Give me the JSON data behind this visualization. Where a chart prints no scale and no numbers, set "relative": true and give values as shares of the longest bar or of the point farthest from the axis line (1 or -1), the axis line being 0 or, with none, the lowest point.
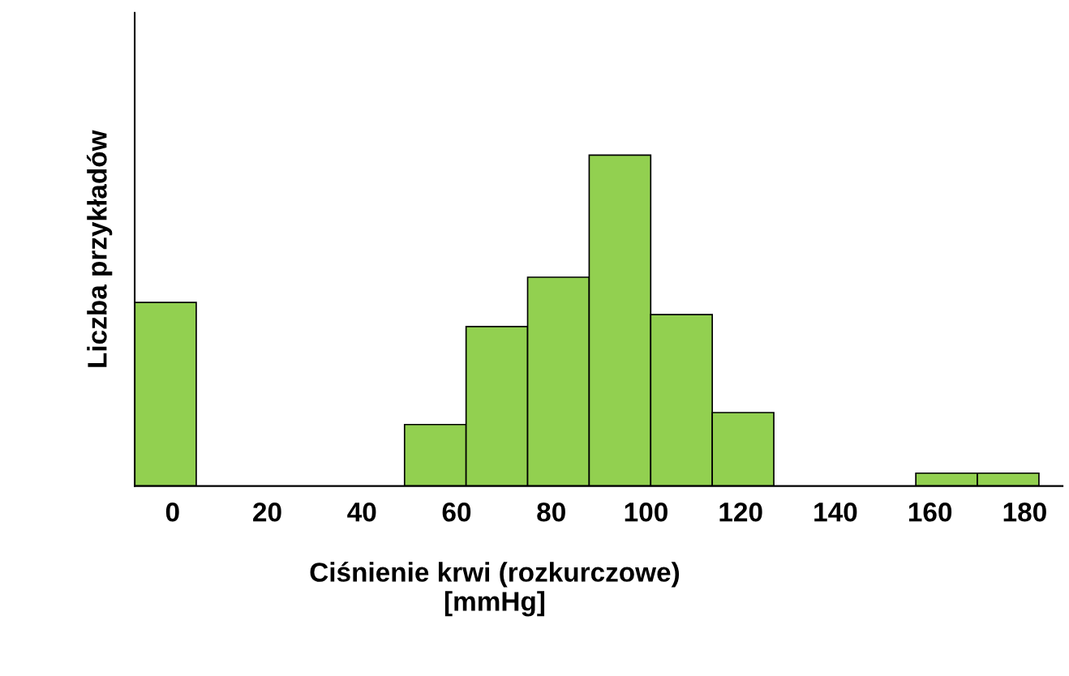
{
  "chart_data": {
    "type": "bar",
    "relative": true,
    "x": [
      -1.5,
      55.5,
      68.5,
      81.5,
      94.5,
      107.5,
      120.5,
      163.5,
      176.5
    ],
    "values": [
      0.555,
      0.186,
      0.482,
      0.631,
      1,
      0.518,
      0.222,
      0.039,
      0.039
    ],
    "color": "#92d050",
    "xlim": [
      -8,
      188
    ],
    "xticks": [
      0,
      20,
      40,
      60,
      80,
      100,
      120,
      140,
      160,
      180
    ],
    "xlabel": "Ciśnienie krwi (rozkurczowe)\n[mmHg]",
    "ylabel": "Liczba przykładów",
    "grid": false,
    "legend": false
  }
}
